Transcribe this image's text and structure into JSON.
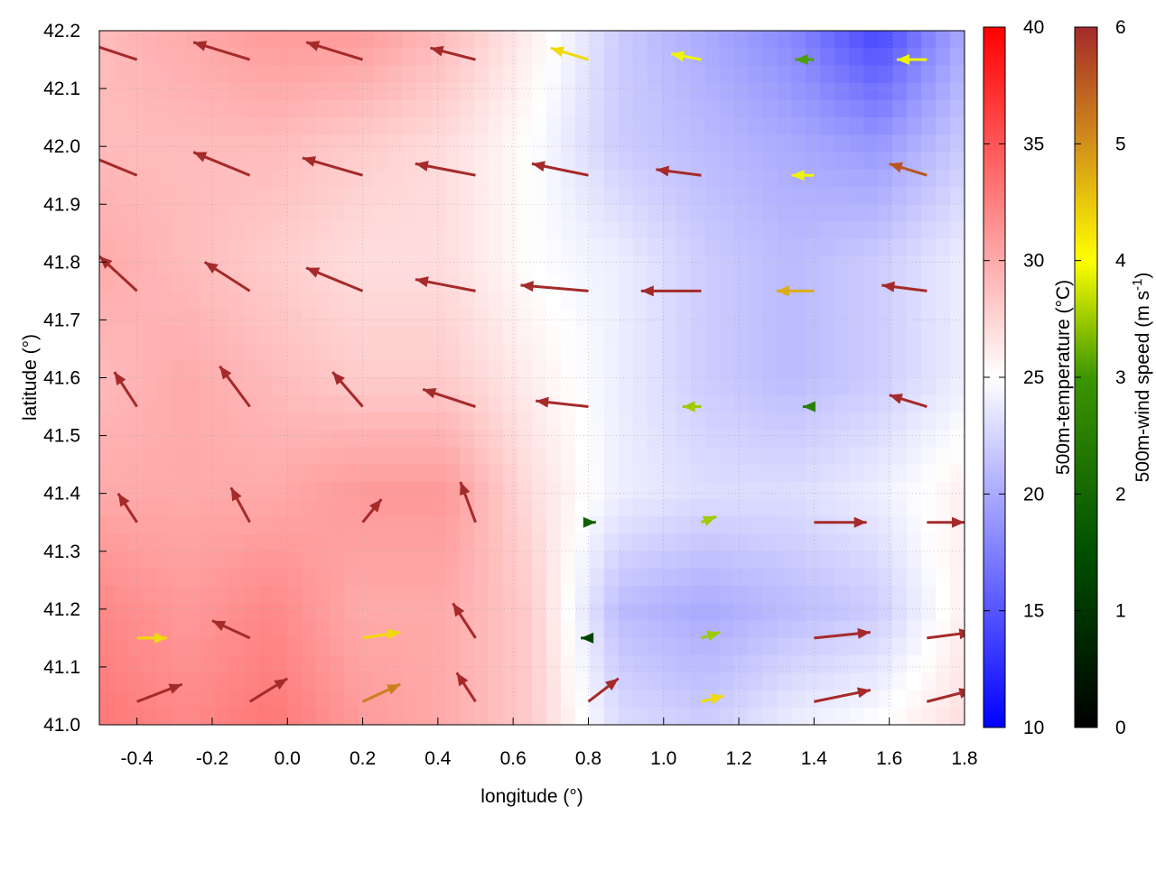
{
  "chart_data": {
    "type": "heatmap",
    "overlay": "vector-field",
    "xlabel": "longitude (°)",
    "ylabel": "latitude (°)",
    "xlim": [
      -0.5,
      1.8
    ],
    "ylim": [
      41.0,
      42.2
    ],
    "xticks": [
      "-0.4",
      "-0.2",
      "0.0",
      "0.2",
      "0.4",
      "0.6",
      "0.8",
      "1.0",
      "1.2",
      "1.4",
      "1.6",
      "1.8"
    ],
    "yticks": [
      "41.0",
      "41.1",
      "41.2",
      "41.3",
      "41.4",
      "41.5",
      "41.6",
      "41.7",
      "41.8",
      "41.9",
      "42.0",
      "42.1",
      "42.2"
    ],
    "grid": true,
    "temperature_colorbar": {
      "label": "500m-temperature (°C)",
      "range": [
        10,
        40
      ],
      "ticks": [
        "10",
        "15",
        "20",
        "25",
        "30",
        "35",
        "40"
      ],
      "colors": {
        "low": "#0000ff",
        "mid": "#ffffff",
        "high": "#ff0000"
      }
    },
    "wind_colorbar": {
      "label_main": "500m-wind speed (m s",
      "label_sup": "-1",
      "label_end": ")",
      "range": [
        0,
        6
      ],
      "ticks": [
        "0",
        "1",
        "2",
        "3",
        "4",
        "5",
        "6"
      ],
      "colors": [
        "#000000",
        "#005000",
        "#3c9600",
        "#ffff00",
        "#d2901a",
        "#a52a2a"
      ]
    },
    "temperature_grid": {
      "lon": [
        -0.5,
        -0.27,
        -0.04,
        0.19,
        0.42,
        0.65,
        0.88,
        1.11,
        1.34,
        1.57,
        1.8
      ],
      "lat": [
        42.2,
        42.0,
        41.8,
        41.6,
        41.4,
        41.2,
        41.0
      ],
      "values": [
        [
          29,
          30,
          31,
          31,
          29,
          26,
          22,
          20,
          18,
          14,
          20
        ],
        [
          29,
          29,
          29,
          28,
          27,
          25,
          22,
          21,
          20,
          19,
          22
        ],
        [
          30,
          29,
          28,
          27,
          27,
          25,
          24,
          22,
          21,
          22,
          24
        ],
        [
          29,
          30,
          29,
          28,
          28,
          26,
          24,
          22,
          21,
          22,
          24
        ],
        [
          30,
          30,
          30,
          31,
          31,
          27,
          24,
          23,
          23,
          24,
          26
        ],
        [
          32,
          31,
          32,
          30,
          30,
          28,
          21,
          20,
          21,
          22,
          26
        ],
        [
          33,
          32,
          33,
          31,
          30,
          28,
          23,
          22,
          24,
          25,
          27
        ]
      ]
    },
    "vectors_columns": [
      "lon",
      "lat",
      "dlon",
      "dlat",
      "speed"
    ],
    "vectors": [
      [
        -0.4,
        42.15,
        -0.14,
        0.03,
        6
      ],
      [
        -0.1,
        42.15,
        -0.15,
        0.03,
        6
      ],
      [
        0.2,
        42.15,
        -0.15,
        0.03,
        6
      ],
      [
        0.5,
        42.15,
        -0.12,
        0.02,
        6
      ],
      [
        0.8,
        42.15,
        -0.1,
        0.02,
        4
      ],
      [
        1.1,
        42.15,
        -0.08,
        0.01,
        3.5
      ],
      [
        1.4,
        42.15,
        -0.05,
        0.0,
        2.5
      ],
      [
        1.7,
        42.15,
        -0.08,
        0.0,
        3.5
      ],
      [
        -0.4,
        41.95,
        -0.15,
        0.04,
        6
      ],
      [
        -0.1,
        41.95,
        -0.15,
        0.04,
        6
      ],
      [
        0.2,
        41.95,
        -0.16,
        0.03,
        6
      ],
      [
        0.5,
        41.95,
        -0.16,
        0.02,
        6
      ],
      [
        0.8,
        41.95,
        -0.15,
        0.02,
        6
      ],
      [
        1.1,
        41.95,
        -0.12,
        0.01,
        6
      ],
      [
        1.4,
        41.95,
        -0.06,
        0.0,
        3.5
      ],
      [
        1.7,
        41.95,
        -0.1,
        0.02,
        5.5
      ],
      [
        -0.4,
        41.75,
        -0.1,
        0.06,
        6
      ],
      [
        -0.1,
        41.75,
        -0.12,
        0.05,
        6
      ],
      [
        0.2,
        41.75,
        -0.15,
        0.04,
        6
      ],
      [
        0.5,
        41.75,
        -0.16,
        0.02,
        6
      ],
      [
        0.8,
        41.75,
        -0.18,
        0.01,
        6
      ],
      [
        1.1,
        41.75,
        -0.16,
        0.0,
        6
      ],
      [
        1.4,
        41.75,
        -0.1,
        0.0,
        4.5
      ],
      [
        1.7,
        41.75,
        -0.12,
        0.01,
        6
      ],
      [
        -0.4,
        41.55,
        -0.06,
        0.06,
        6
      ],
      [
        -0.1,
        41.55,
        -0.08,
        0.07,
        6
      ],
      [
        0.2,
        41.55,
        -0.08,
        0.06,
        6
      ],
      [
        0.5,
        41.55,
        -0.14,
        0.03,
        6
      ],
      [
        0.8,
        41.55,
        -0.14,
        0.01,
        6
      ],
      [
        1.1,
        41.55,
        -0.05,
        0.0,
        3
      ],
      [
        1.4,
        41.55,
        -0.03,
        0.0,
        2
      ],
      [
        1.7,
        41.55,
        -0.1,
        0.02,
        6
      ],
      [
        -0.4,
        41.35,
        -0.05,
        0.05,
        6
      ],
      [
        -0.1,
        41.35,
        -0.05,
        0.06,
        6
      ],
      [
        0.2,
        41.35,
        0.05,
        0.04,
        6
      ],
      [
        0.5,
        41.35,
        -0.04,
        0.07,
        6
      ],
      [
        0.8,
        41.35,
        0.02,
        0.0,
        1.5
      ],
      [
        1.1,
        41.35,
        0.04,
        0.01,
        3
      ],
      [
        1.4,
        41.35,
        0.14,
        0.0,
        6
      ],
      [
        1.7,
        41.35,
        0.1,
        0.0,
        6
      ],
      [
        -0.4,
        41.15,
        0.08,
        0.0,
        4
      ],
      [
        -0.1,
        41.15,
        -0.1,
        0.03,
        6
      ],
      [
        0.2,
        41.15,
        0.1,
        0.01,
        4
      ],
      [
        0.5,
        41.15,
        -0.06,
        0.06,
        6
      ],
      [
        0.8,
        41.15,
        -0.02,
        0.0,
        1
      ],
      [
        1.1,
        41.15,
        0.05,
        0.01,
        3
      ],
      [
        1.4,
        41.15,
        0.15,
        0.01,
        6
      ],
      [
        1.7,
        41.15,
        0.12,
        0.01,
        6
      ],
      [
        -0.4,
        41.04,
        0.12,
        0.03,
        6
      ],
      [
        -0.1,
        41.04,
        0.1,
        0.04,
        6
      ],
      [
        0.2,
        41.04,
        0.1,
        0.03,
        5
      ],
      [
        0.5,
        41.04,
        -0.05,
        0.05,
        6
      ],
      [
        0.8,
        41.04,
        0.08,
        0.04,
        6
      ],
      [
        1.1,
        41.04,
        0.06,
        0.01,
        4
      ],
      [
        1.4,
        41.04,
        0.15,
        0.02,
        6
      ],
      [
        1.7,
        41.04,
        0.12,
        0.02,
        6
      ]
    ]
  }
}
